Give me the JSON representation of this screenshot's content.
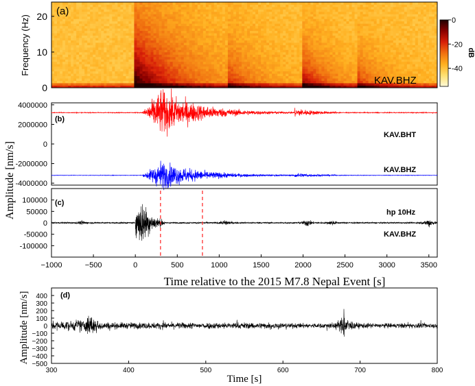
{
  "panel_a": {
    "tag": "(a)",
    "station": "KAV.BHZ",
    "ylabel": "Frequency (Hz)",
    "yticks": [
      0,
      10,
      20
    ],
    "colorbar": {
      "label": "dB",
      "ticks": [
        0,
        -20,
        -40
      ],
      "range": [
        -55,
        0
      ]
    },
    "palette": [
      "#fffad8",
      "#ffe070",
      "#ffb020",
      "#f07010",
      "#d82008",
      "#8a0000",
      "#200000"
    ]
  },
  "panel_b": {
    "tag": "(b)",
    "yticks": [
      "4000000",
      "2000000",
      "0",
      "-2000000",
      "-4000000"
    ],
    "trace_top": "KAV.BHT",
    "trace_bottom": "KAV.BHZ",
    "color_top": "#ff0000",
    "color_bottom": "#0000ff"
  },
  "panel_c": {
    "tag": "(c)",
    "yticks": [
      "100000",
      "50000",
      "0",
      "-50000",
      "-100000"
    ],
    "filter": "hp 10Hz",
    "station": "KAV.BHZ",
    "marker_times": [
      300,
      800
    ],
    "marker_color": "#ff3030"
  },
  "shared_ylabel": "Amplitude [nm/s]",
  "xaxis_top": {
    "ticks": [
      "−1000",
      "−500",
      "0",
      "500",
      "1000",
      "1500",
      "2000",
      "2500",
      "3000",
      "3500"
    ],
    "label": "Time relative to the 2015 M7.8 Nepal Event [s]"
  },
  "panel_d": {
    "tag": "(d)",
    "ylabel": "Amplitude [nm/s]",
    "yticks": [
      "400",
      "300",
      "200",
      "100",
      "0",
      "−100",
      "−200",
      "−300",
      "−400",
      "−500"
    ],
    "xticks": [
      "300",
      "400",
      "500",
      "600",
      "700",
      "800"
    ],
    "xlabel": "Time [s]"
  },
  "chart_data": [
    {
      "type": "heatmap",
      "title": "",
      "xlabel": "",
      "ylabel": "Frequency (Hz)",
      "xlim": [
        -1000,
        3600
      ],
      "ylim": [
        0,
        24
      ],
      "zlabel": "dB",
      "zlim": [
        -55,
        0
      ],
      "station": "KAV.BHZ",
      "energy_onsets_s": [
        0,
        1100,
        2000,
        2650
      ]
    },
    {
      "type": "line",
      "xlim": [
        -1000,
        3600
      ],
      "ylim": [
        -4200000,
        4200000
      ],
      "series": [
        {
          "name": "KAV.BHT",
          "offset": 3200000,
          "peak_amplitude": 2500000,
          "peak_time": 300
        },
        {
          "name": "KAV.BHZ",
          "offset": -3200000,
          "peak_amplitude": 1500000,
          "peak_time": 300
        }
      ]
    },
    {
      "type": "line",
      "xlim": [
        -1000,
        3600
      ],
      "ylim": [
        -150000,
        150000
      ],
      "series": [
        {
          "name": "KAV.BHZ",
          "filter": "hp 10Hz",
          "peak_amplitude": 110000,
          "peak_time": 80
        }
      ],
      "markers": [
        300,
        800
      ]
    },
    {
      "type": "line",
      "xlim": [
        300,
        800
      ],
      "ylim": [
        -500,
        500
      ],
      "xlabel": "Time [s]",
      "ylabel": "Amplitude [nm/s]",
      "series": [
        {
          "name": "KAV.BHZ",
          "bursts": [
            {
              "t": 350,
              "amp": 300
            },
            {
              "t": 680,
              "amp": 280
            }
          ],
          "background_amp": 60
        }
      ]
    }
  ]
}
